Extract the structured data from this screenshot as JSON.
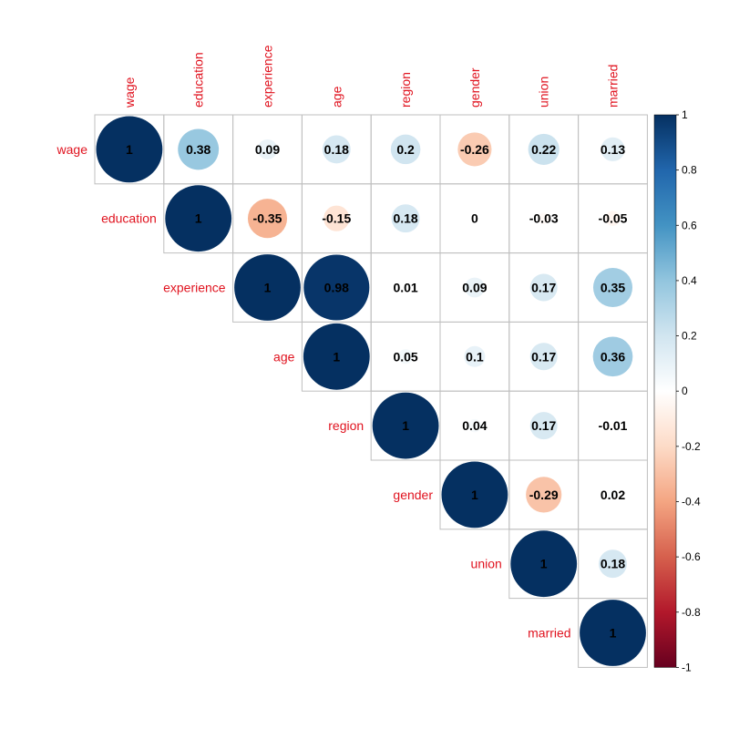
{
  "chart_data": {
    "type": "heatmap",
    "variables": [
      "wage",
      "education",
      "experience",
      "age",
      "region",
      "gender",
      "union",
      "married"
    ],
    "matrix": [
      [
        1,
        0.38,
        0.09,
        0.18,
        0.2,
        -0.26,
        0.22,
        0.13
      ],
      [
        0.38,
        1,
        -0.35,
        -0.15,
        0.18,
        0,
        -0.03,
        -0.05
      ],
      [
        0.09,
        -0.35,
        1,
        0.98,
        0.01,
        0.09,
        0.17,
        0.35
      ],
      [
        0.18,
        -0.15,
        0.98,
        1,
        0.05,
        0.1,
        0.17,
        0.36
      ],
      [
        0.2,
        0.18,
        0.01,
        0.05,
        1,
        0.04,
        0.17,
        -0.01
      ],
      [
        -0.26,
        0,
        0.09,
        0.1,
        0.04,
        1,
        -0.29,
        0.02
      ],
      [
        0.22,
        -0.03,
        0.17,
        0.17,
        0.17,
        -0.29,
        1,
        0.18
      ],
      [
        0.13,
        -0.05,
        0.35,
        0.36,
        -0.01,
        0.02,
        0.18,
        1
      ]
    ],
    "display": "upper-triangle",
    "marker": "circle",
    "colorbar": {
      "range": [
        -1,
        1
      ],
      "ticks": [
        "1",
        "0.8",
        "0.6",
        "0.4",
        "0.2",
        "0",
        "-0.2",
        "-0.4",
        "-0.6",
        "-0.8",
        "-1"
      ],
      "placement": "right"
    },
    "colors": {
      "label_color": "#e0131f",
      "negative_end": "#67001f",
      "mid": "#ffffff",
      "positive_end": "#053061"
    }
  }
}
